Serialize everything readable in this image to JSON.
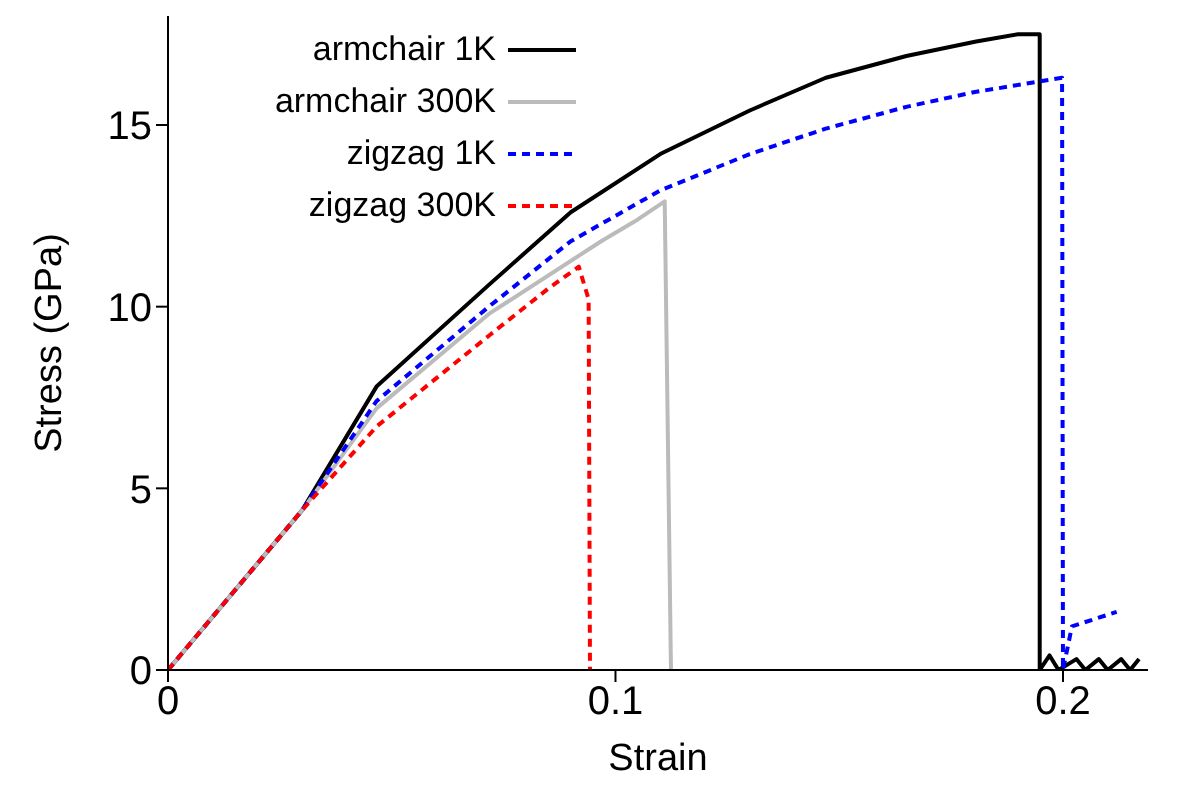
{
  "chart_data": {
    "type": "line",
    "xlabel": "Strain",
    "ylabel": "Stress (GPa)",
    "xlim": [
      0,
      0.219
    ],
    "ylim": [
      0,
      18
    ],
    "xticks": [
      0,
      0.1,
      0.2
    ],
    "yticks": [
      0,
      5,
      10,
      15
    ],
    "legend": "top left",
    "marker": "none",
    "series": [
      {
        "name": "armchair 1K",
        "color": "#000000",
        "line_style": "solid",
        "x": [
          0,
          0.03,
          0.0466,
          0.0717,
          0.09,
          0.11,
          0.13,
          0.147,
          0.165,
          0.1806,
          0.19,
          0.1948,
          0.1948,
          0.197,
          0.199,
          0.203,
          0.205,
          0.208,
          0.21,
          0.213,
          0.215,
          0.217
        ],
        "values": [
          0,
          4.4,
          7.8,
          10.6,
          12.6,
          14.2,
          15.4,
          16.3,
          16.9,
          17.3,
          17.5,
          17.5,
          0,
          0.4,
          0,
          0.3,
          0,
          0.3,
          0,
          0.3,
          0,
          0.3
        ]
      },
      {
        "name": "armchair 300K",
        "color": "#bbbbbb",
        "line_style": "solid",
        "x": [
          0,
          0.03,
          0.0466,
          0.0717,
          0.0968,
          0.105,
          0.111,
          0.1124
        ],
        "values": [
          0,
          4.4,
          7.2,
          9.8,
          11.8,
          12.4,
          12.9,
          0
        ]
      },
      {
        "name": "zigzag 1K",
        "color": "#0000ff",
        "line_style": "dashed",
        "x": [
          0,
          0.03,
          0.0466,
          0.0717,
          0.09,
          0.11,
          0.13,
          0.147,
          0.165,
          0.18,
          0.1998,
          0.2,
          0.202,
          0.207,
          0.212
        ],
        "values": [
          0,
          4.4,
          7.4,
          10.0,
          11.8,
          13.2,
          14.2,
          14.9,
          15.5,
          15.9,
          16.3,
          0,
          1.2,
          1.4,
          1.6
        ]
      },
      {
        "name": "zigzag 300K",
        "color": "#ff0000",
        "line_style": "dashed",
        "x": [
          0,
          0.03,
          0.0466,
          0.0717,
          0.085,
          0.0918,
          0.094,
          0.0943
        ],
        "values": [
          0,
          4.4,
          6.7,
          9.2,
          10.5,
          11.1,
          10.2,
          0
        ]
      }
    ]
  }
}
